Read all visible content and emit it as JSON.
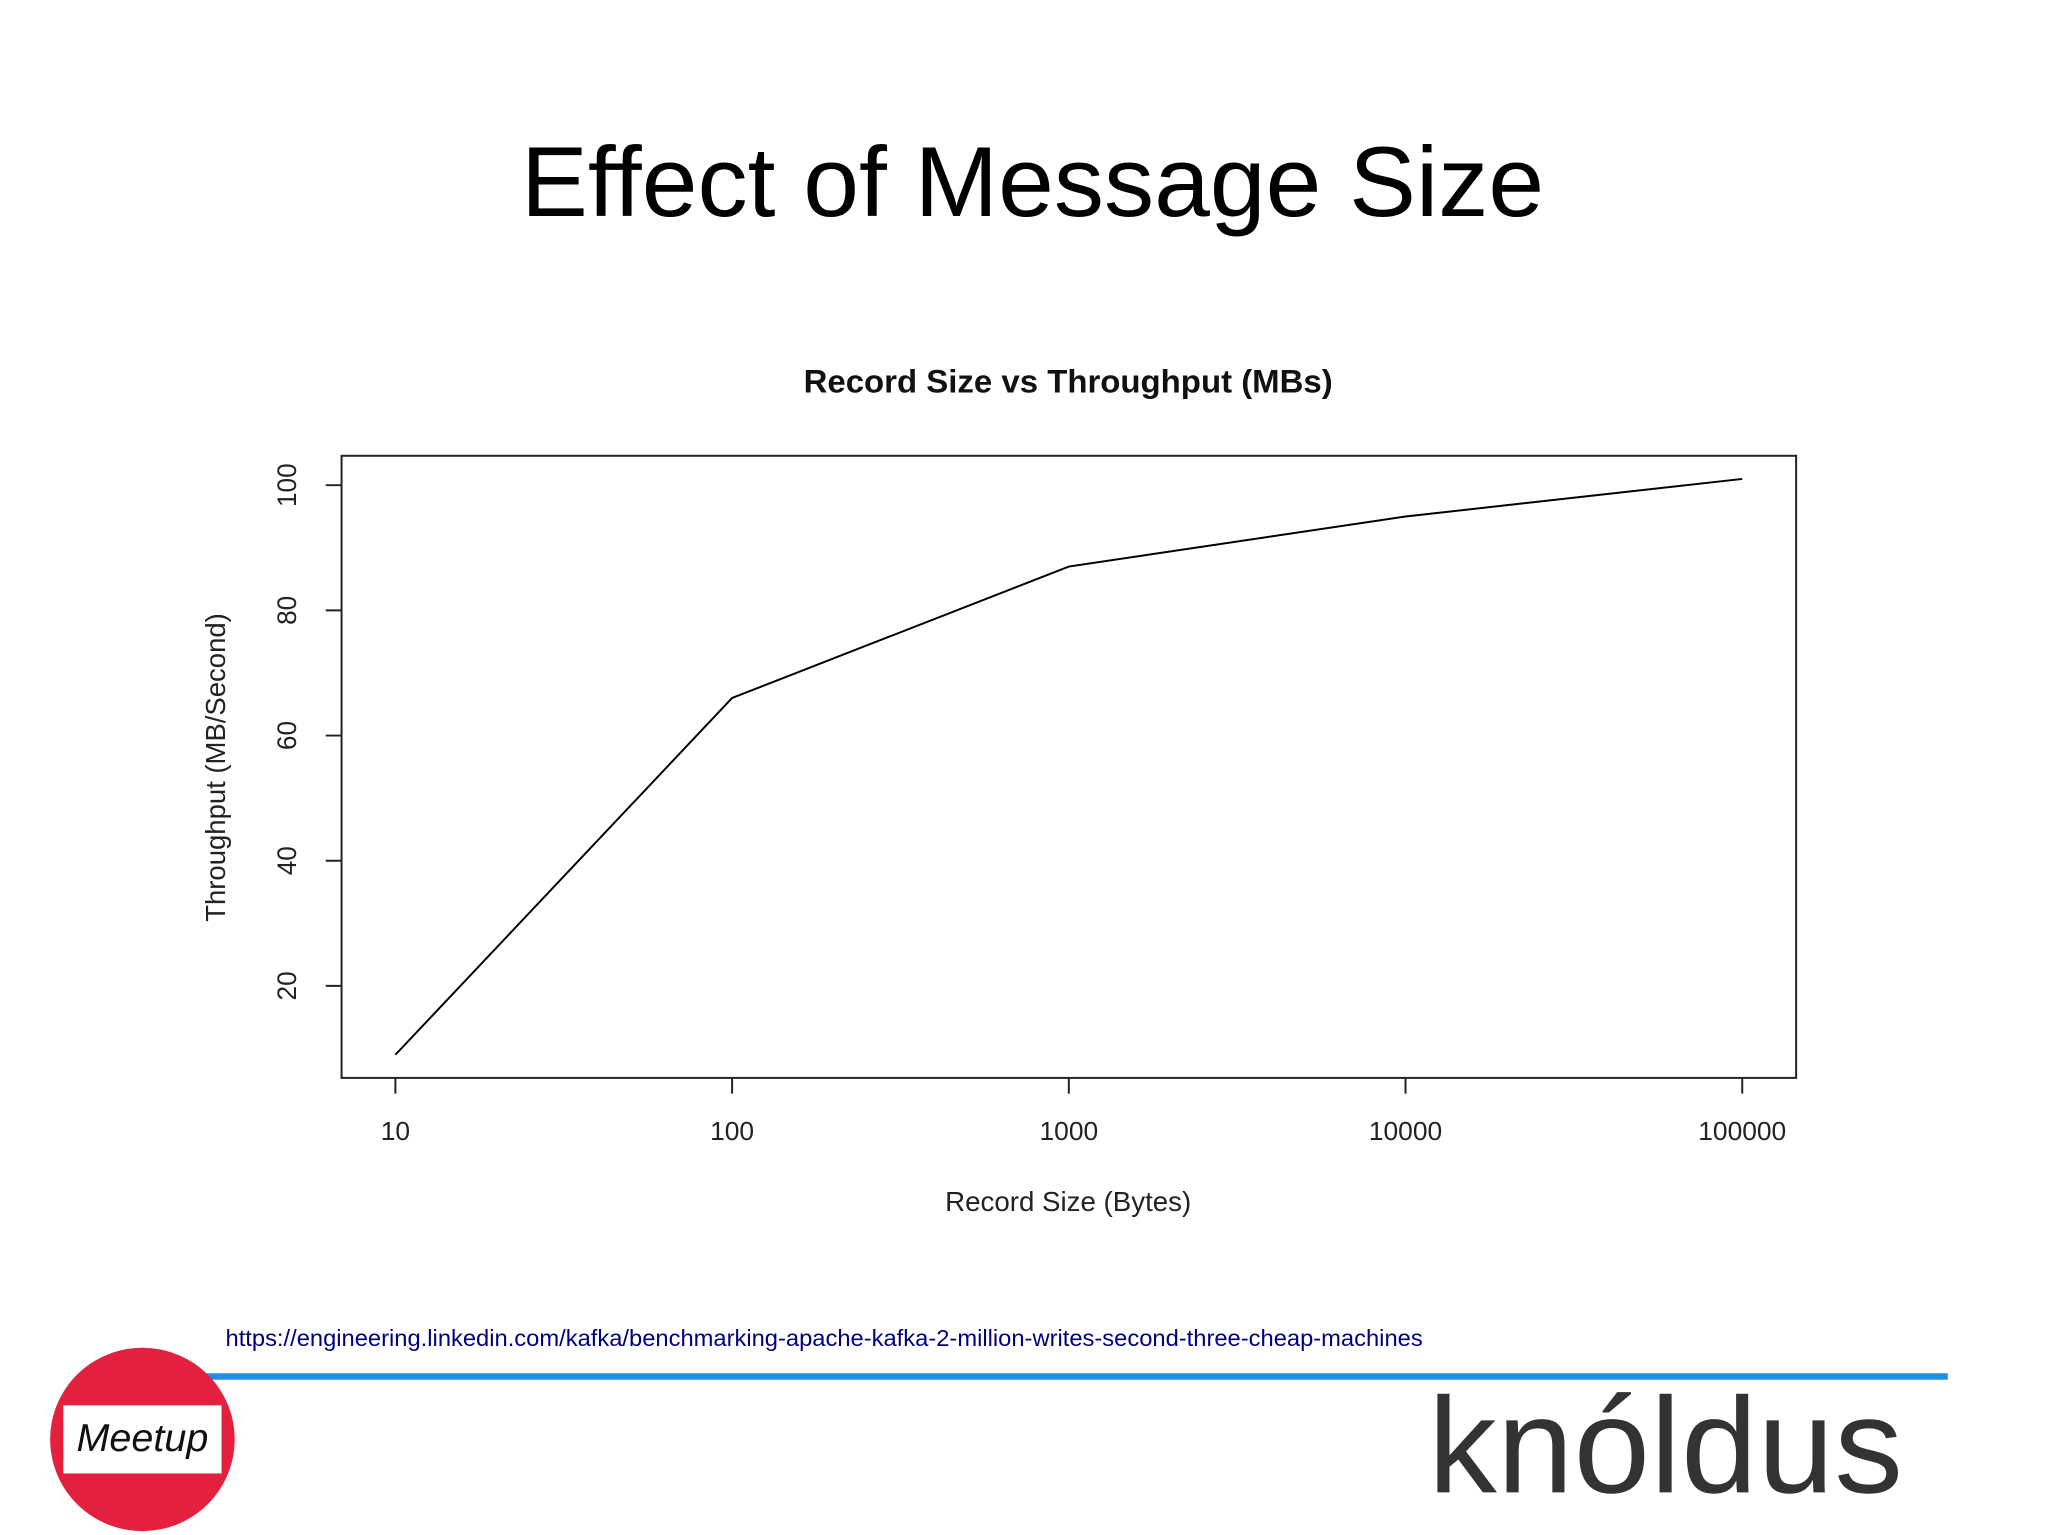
{
  "slide_title": "Effect of Message Size",
  "chart_data": {
    "type": "line",
    "title": "Record Size vs Throughput (MBs)",
    "x_label": "Record Size (Bytes)",
    "y_label": "Throughput (MB/Second)",
    "x": [
      10,
      100,
      1000,
      10000,
      100000
    ],
    "values": [
      9,
      66,
      87,
      95,
      101
    ],
    "color": "#000000",
    "xscale": "log",
    "xlim": [
      6.92,
      144544
    ],
    "ylim": [
      5.3,
      104.7
    ],
    "xticks": [
      10,
      100,
      1000,
      10000,
      100000
    ],
    "yticks": [
      20,
      40,
      60,
      80,
      100
    ]
  },
  "source_url": "https://engineering.linkedin.com/kafka/benchmarking-apache-kafka-2-million-writes-second-three-cheap-machines",
  "logos": [
    "Meetup",
    "knóldus"
  ]
}
